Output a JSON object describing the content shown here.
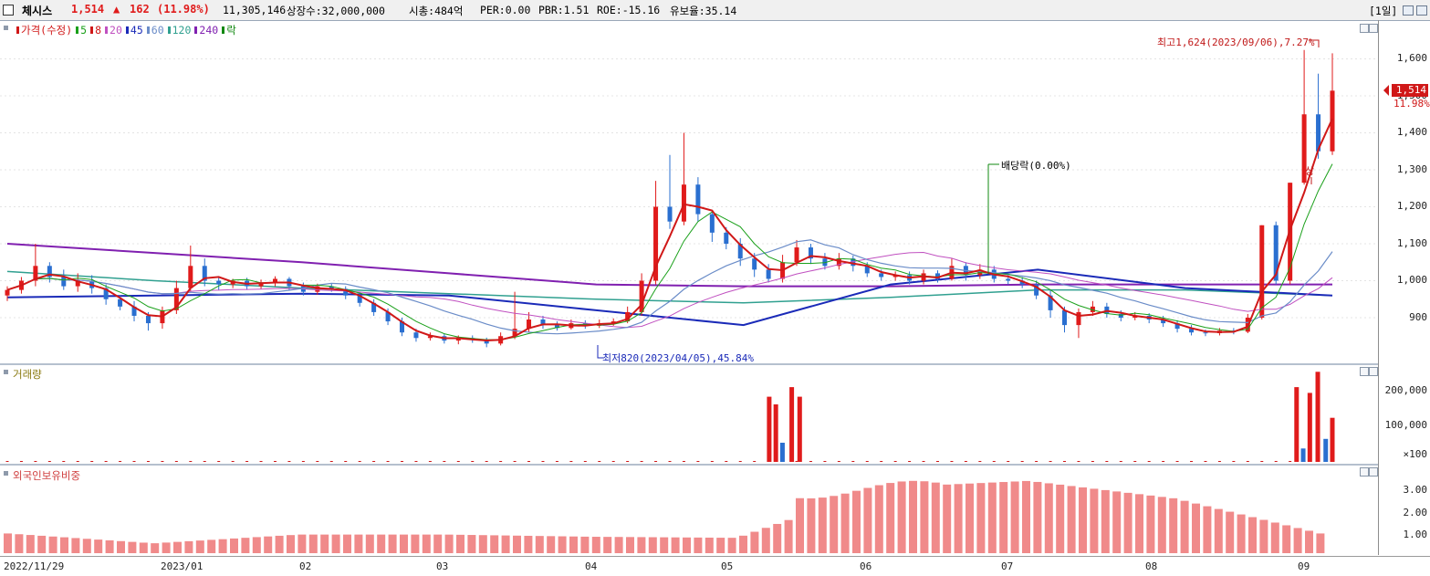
{
  "header": {
    "name": "체시스",
    "price": "1,514",
    "arrow": "▲",
    "change": "162",
    "change_pct": "(11.98%)",
    "volume": "11,305,146",
    "shares": "상장수:32,000,000",
    "mcap": "시총:484억",
    "per": "PER:0.00",
    "pbr": "PBR:1.51",
    "roe": "ROE:-15.16",
    "float": "유보율:35.14",
    "period": "[1일]"
  },
  "price_panel": {
    "legend": [
      {
        "text": "가격(수정)",
        "color": "#d01818"
      },
      {
        "text": "5",
        "color": "#1aa01a"
      },
      {
        "text": "8",
        "color": "#d01818"
      },
      {
        "text": "20",
        "color": "#c050c0"
      },
      {
        "text": "45",
        "color": "#1a2ab8"
      },
      {
        "text": "60",
        "color": "#6a8cc8"
      },
      {
        "text": "120",
        "color": "#30a090"
      },
      {
        "text": "240",
        "color": "#8020b0"
      },
      {
        "text": "락",
        "color": "#118811"
      }
    ],
    "y_ticks": [
      "1,600",
      "1,500",
      "1,400",
      "1,300",
      "1,200",
      "1,100",
      "1,000",
      "900"
    ],
    "current_price": "1,514",
    "current_pct": "11.98%",
    "annotations": {
      "high": "최고1,624(2023/09/06),7.27%",
      "low": "최저820(2023/04/05),45.84%",
      "dividend": "배당락(0.00%)",
      "limit_up": "상"
    }
  },
  "volume_panel": {
    "title": "거래량",
    "y_ticks": [
      "200,000",
      "100,000",
      "×100"
    ]
  },
  "foreign_panel": {
    "title": "외국인보유비중",
    "y_ticks": [
      "3.00",
      "2.00",
      "1.00"
    ]
  },
  "x_axis": [
    "2022/11/29",
    "2023/01",
    "02",
    "03",
    "04",
    "05",
    "06",
    "07",
    "08",
    "09"
  ],
  "colors": {
    "up": "#e01b1b",
    "down": "#2a6fd0",
    "ma240": "#8020b0",
    "ma45": "#1a2ab8",
    "ma120": "#30a090",
    "ma60": "#6a8cc8",
    "ma20": "#c050c0",
    "ma8": "#d01818",
    "ma5": "#1aa01a",
    "foreign": "#f08a8a"
  },
  "chart_data": [
    {
      "type": "line",
      "title": "가격(수정)",
      "x": [
        "2022/11/29",
        "2023/01",
        "02",
        "03",
        "04",
        "05",
        "06",
        "07",
        "08",
        "09"
      ],
      "ylim": [
        800,
        1680
      ],
      "series": [
        {
          "name": "가격(수정)",
          "values": [
            960,
            915,
            985,
            960,
            850,
            880,
            1000,
            1040,
            895,
            1514
          ]
        },
        {
          "name": "240",
          "values": [
            1100,
            1075,
            1050,
            1020,
            990,
            985,
            985,
            990,
            990,
            990
          ]
        },
        {
          "name": "45",
          "values": [
            955,
            960,
            965,
            960,
            920,
            880,
            990,
            1030,
            980,
            960
          ]
        },
        {
          "name": "120",
          "values": [
            1025,
            1000,
            980,
            965,
            950,
            940,
            955,
            975,
            975,
            960
          ]
        }
      ],
      "candles": [
        {
          "o": 960,
          "c": 975,
          "h": 985,
          "l": 945
        },
        {
          "o": 975,
          "c": 1000,
          "h": 1010,
          "l": 965
        },
        {
          "o": 1000,
          "c": 1040,
          "h": 1100,
          "l": 985
        },
        {
          "o": 1040,
          "c": 1010,
          "h": 1050,
          "l": 995
        },
        {
          "o": 1010,
          "c": 985,
          "h": 1030,
          "l": 975
        },
        {
          "o": 985,
          "c": 1000,
          "h": 1020,
          "l": 970
        },
        {
          "o": 1000,
          "c": 980,
          "h": 1015,
          "l": 965
        },
        {
          "o": 980,
          "c": 950,
          "h": 990,
          "l": 935
        },
        {
          "o": 950,
          "c": 930,
          "h": 960,
          "l": 920
        },
        {
          "o": 930,
          "c": 905,
          "h": 945,
          "l": 890
        },
        {
          "o": 905,
          "c": 885,
          "h": 915,
          "l": 865
        },
        {
          "o": 885,
          "c": 920,
          "h": 930,
          "l": 870
        },
        {
          "o": 920,
          "c": 980,
          "h": 1000,
          "l": 910
        },
        {
          "o": 980,
          "c": 1040,
          "h": 1095,
          "l": 970
        },
        {
          "o": 1040,
          "c": 1000,
          "h": 1060,
          "l": 985
        },
        {
          "o": 1000,
          "c": 990,
          "h": 1010,
          "l": 975
        },
        {
          "o": 990,
          "c": 1000,
          "h": 1005,
          "l": 980
        },
        {
          "o": 1000,
          "c": 985,
          "h": 1008,
          "l": 975
        },
        {
          "o": 985,
          "c": 995,
          "h": 1003,
          "l": 978
        },
        {
          "o": 995,
          "c": 1005,
          "h": 1012,
          "l": 985
        },
        {
          "o": 1005,
          "c": 985,
          "h": 1010,
          "l": 975
        },
        {
          "o": 985,
          "c": 970,
          "h": 995,
          "l": 960
        },
        {
          "o": 970,
          "c": 985,
          "h": 992,
          "l": 962
        },
        {
          "o": 985,
          "c": 978,
          "h": 992,
          "l": 970
        },
        {
          "o": 978,
          "c": 960,
          "h": 985,
          "l": 950
        },
        {
          "o": 960,
          "c": 940,
          "h": 968,
          "l": 930
        },
        {
          "o": 940,
          "c": 915,
          "h": 950,
          "l": 905
        },
        {
          "o": 915,
          "c": 890,
          "h": 925,
          "l": 880
        },
        {
          "o": 890,
          "c": 860,
          "h": 900,
          "l": 850
        },
        {
          "o": 860,
          "c": 845,
          "h": 870,
          "l": 835
        },
        {
          "o": 845,
          "c": 850,
          "h": 860,
          "l": 838
        },
        {
          "o": 850,
          "c": 838,
          "h": 856,
          "l": 830
        },
        {
          "o": 838,
          "c": 845,
          "h": 852,
          "l": 828
        },
        {
          "o": 845,
          "c": 840,
          "h": 852,
          "l": 832
        },
        {
          "o": 840,
          "c": 830,
          "h": 846,
          "l": 820
        },
        {
          "o": 830,
          "c": 850,
          "h": 860,
          "l": 825
        },
        {
          "o": 850,
          "c": 870,
          "h": 970,
          "l": 842
        },
        {
          "o": 870,
          "c": 895,
          "h": 915,
          "l": 860
        },
        {
          "o": 895,
          "c": 880,
          "h": 905,
          "l": 870
        },
        {
          "o": 880,
          "c": 872,
          "h": 890,
          "l": 865
        },
        {
          "o": 872,
          "c": 885,
          "h": 895,
          "l": 868
        },
        {
          "o": 885,
          "c": 878,
          "h": 893,
          "l": 870
        },
        {
          "o": 878,
          "c": 885,
          "h": 895,
          "l": 872
        },
        {
          "o": 885,
          "c": 890,
          "h": 898,
          "l": 878
        },
        {
          "o": 890,
          "c": 915,
          "h": 930,
          "l": 885
        },
        {
          "o": 915,
          "c": 1000,
          "h": 1020,
          "l": 905
        },
        {
          "o": 1000,
          "c": 1200,
          "h": 1270,
          "l": 990
        },
        {
          "o": 1200,
          "c": 1160,
          "h": 1340,
          "l": 1140
        },
        {
          "o": 1160,
          "c": 1260,
          "h": 1400,
          "l": 1150
        },
        {
          "o": 1260,
          "c": 1180,
          "h": 1280,
          "l": 1160
        },
        {
          "o": 1180,
          "c": 1130,
          "h": 1190,
          "l": 1105
        },
        {
          "o": 1130,
          "c": 1100,
          "h": 1145,
          "l": 1085
        },
        {
          "o": 1100,
          "c": 1060,
          "h": 1115,
          "l": 1040
        },
        {
          "o": 1060,
          "c": 1030,
          "h": 1075,
          "l": 1010
        },
        {
          "o": 1030,
          "c": 1005,
          "h": 1045,
          "l": 995
        },
        {
          "o": 1005,
          "c": 1050,
          "h": 1070,
          "l": 995
        },
        {
          "o": 1050,
          "c": 1090,
          "h": 1110,
          "l": 1040
        },
        {
          "o": 1090,
          "c": 1060,
          "h": 1100,
          "l": 1045
        },
        {
          "o": 1060,
          "c": 1040,
          "h": 1075,
          "l": 1030
        },
        {
          "o": 1040,
          "c": 1060,
          "h": 1075,
          "l": 1030
        },
        {
          "o": 1060,
          "c": 1040,
          "h": 1068,
          "l": 1025
        },
        {
          "o": 1040,
          "c": 1020,
          "h": 1050,
          "l": 1010
        },
        {
          "o": 1020,
          "c": 1010,
          "h": 1030,
          "l": 1000
        },
        {
          "o": 1010,
          "c": 1015,
          "h": 1025,
          "l": 1000
        },
        {
          "o": 1015,
          "c": 1000,
          "h": 1025,
          "l": 990
        },
        {
          "o": 1000,
          "c": 1020,
          "h": 1030,
          "l": 990
        },
        {
          "o": 1020,
          "c": 1005,
          "h": 1028,
          "l": 995
        },
        {
          "o": 1005,
          "c": 1040,
          "h": 1060,
          "l": 1000
        },
        {
          "o": 1040,
          "c": 1015,
          "h": 1050,
          "l": 1000
        },
        {
          "o": 1015,
          "c": 1030,
          "h": 1045,
          "l": 1005
        },
        {
          "o": 1030,
          "c": 1005,
          "h": 1040,
          "l": 995
        },
        {
          "o": 1005,
          "c": 1000,
          "h": 1015,
          "l": 990
        },
        {
          "o": 1000,
          "c": 990,
          "h": 1010,
          "l": 980
        },
        {
          "o": 990,
          "c": 960,
          "h": 1000,
          "l": 950
        },
        {
          "o": 960,
          "c": 920,
          "h": 975,
          "l": 900
        },
        {
          "o": 920,
          "c": 880,
          "h": 930,
          "l": 860
        },
        {
          "o": 880,
          "c": 915,
          "h": 925,
          "l": 845
        },
        {
          "o": 915,
          "c": 930,
          "h": 945,
          "l": 905
        },
        {
          "o": 930,
          "c": 910,
          "h": 940,
          "l": 900
        },
        {
          "o": 910,
          "c": 900,
          "h": 920,
          "l": 890
        },
        {
          "o": 900,
          "c": 905,
          "h": 915,
          "l": 893
        },
        {
          "o": 905,
          "c": 895,
          "h": 912,
          "l": 885
        },
        {
          "o": 895,
          "c": 885,
          "h": 905,
          "l": 875
        },
        {
          "o": 885,
          "c": 870,
          "h": 893,
          "l": 860
        },
        {
          "o": 870,
          "c": 860,
          "h": 880,
          "l": 852
        },
        {
          "o": 860,
          "c": 858,
          "h": 868,
          "l": 850
        },
        {
          "o": 858,
          "c": 865,
          "h": 872,
          "l": 852
        },
        {
          "o": 865,
          "c": 862,
          "h": 872,
          "l": 855
        },
        {
          "o": 862,
          "c": 900,
          "h": 910,
          "l": 858
        },
        {
          "o": 900,
          "c": 1150,
          "h": 1150,
          "l": 895
        },
        {
          "o": 1150,
          "c": 1000,
          "h": 1160,
          "l": 990
        },
        {
          "o": 1000,
          "c": 1265,
          "h": 1265,
          "l": 990
        },
        {
          "o": 1265,
          "c": 1450,
          "h": 1624,
          "l": 1260
        },
        {
          "o": 1450,
          "c": 1350,
          "h": 1560,
          "l": 1330
        },
        {
          "o": 1350,
          "c": 1514,
          "h": 1615,
          "l": 1340
        }
      ]
    },
    {
      "type": "bar",
      "title": "거래량",
      "x": [
        "2022/11/29",
        "2023/01",
        "02",
        "03",
        "04",
        "05",
        "06",
        "07",
        "08",
        "09"
      ],
      "ylim": [
        0,
        240000
      ],
      "markers": [
        {
          "date": "2023/05",
          "values": [
            170000,
            150000,
            50000,
            195000,
            170000
          ]
        },
        {
          "date": "2023/09",
          "values": [
            195000,
            35000,
            180000,
            235000,
            60000,
            115000
          ]
        }
      ]
    },
    {
      "type": "bar",
      "title": "외국인보유비중",
      "x": [
        "2022/11/29",
        "2023/01",
        "02",
        "03",
        "04",
        "05",
        "06",
        "07",
        "08",
        "09"
      ],
      "ylim": [
        0,
        3.8
      ],
      "values": [
        0.9,
        0.45,
        0.85,
        0.85,
        0.75,
        0.7,
        3.0,
        3.3,
        2.5,
        0.9
      ]
    }
  ]
}
